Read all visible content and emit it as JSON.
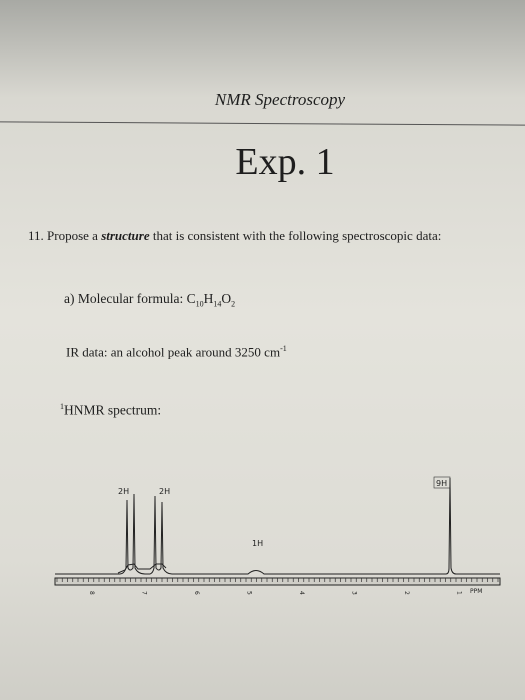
{
  "header": {
    "course": "NMR Spectroscopy",
    "title": "Exp. 1"
  },
  "question": {
    "number": "11.",
    "text_before": "Propose a",
    "emphasis": "structure",
    "text_after": "that is consistent with the following spectroscopic data:"
  },
  "part_a": {
    "label": "a) Molecular formula:",
    "formula": [
      "C",
      "10",
      "H",
      "14",
      "O",
      "2"
    ]
  },
  "ir": {
    "text": "IR data: an alcohol peak around 3250 cm",
    "superscript": "-1"
  },
  "hnmr": {
    "superscript": "1",
    "text": "HNMR spectrum:"
  },
  "spectrum": {
    "peak_labels": [
      "2H",
      "2H",
      "1H",
      "9H"
    ],
    "axis_labels": [
      "8",
      "7",
      "6",
      "5",
      "4",
      "3",
      "2",
      "1"
    ],
    "unit": "PPM"
  }
}
